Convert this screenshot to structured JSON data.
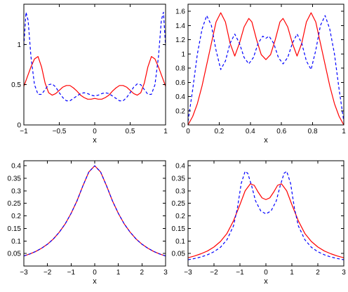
{
  "colors": {
    "solid": "#ff0000",
    "dashed": "#0000ff"
  },
  "chart_data": [
    {
      "type": "line",
      "xlabel": "x",
      "ylabel": "",
      "xlim": [
        -1,
        1
      ],
      "ylim": [
        0,
        1.5
      ],
      "xticks": [
        -1,
        -0.5,
        0,
        0.5,
        1
      ],
      "xtick_labels": [
        "−1",
        "−0.5",
        "0",
        "0.5",
        "1"
      ],
      "yticks": [
        0,
        0.5,
        1
      ],
      "ytick_labels": [
        "0",
        "0.5",
        "1"
      ],
      "series": [
        {
          "style": "solid",
          "color": "#ff0000",
          "x": [
            -1,
            -0.95,
            -0.9,
            -0.85,
            -0.8,
            -0.75,
            -0.7,
            -0.65,
            -0.6,
            -0.55,
            -0.5,
            -0.45,
            -0.4,
            -0.35,
            -0.3,
            -0.25,
            -0.2,
            -0.15,
            -0.1,
            -0.05,
            0,
            0.05,
            0.1,
            0.15,
            0.2,
            0.25,
            0.3,
            0.35,
            0.4,
            0.45,
            0.5,
            0.55,
            0.6,
            0.65,
            0.7,
            0.75,
            0.8,
            0.85,
            0.9,
            0.95,
            1
          ],
          "y": [
            0.48,
            0.6,
            0.72,
            0.82,
            0.85,
            0.72,
            0.52,
            0.4,
            0.37,
            0.39,
            0.43,
            0.47,
            0.49,
            0.49,
            0.46,
            0.42,
            0.37,
            0.34,
            0.32,
            0.32,
            0.33,
            0.32,
            0.32,
            0.34,
            0.37,
            0.42,
            0.46,
            0.49,
            0.49,
            0.47,
            0.43,
            0.39,
            0.37,
            0.4,
            0.52,
            0.72,
            0.85,
            0.82,
            0.72,
            0.6,
            0.48
          ]
        },
        {
          "style": "dashed",
          "color": "#0000ff",
          "x": [
            -1,
            -0.97,
            -0.94,
            -0.9,
            -0.85,
            -0.8,
            -0.75,
            -0.7,
            -0.65,
            -0.6,
            -0.55,
            -0.5,
            -0.45,
            -0.4,
            -0.35,
            -0.3,
            -0.25,
            -0.2,
            -0.15,
            -0.1,
            -0.05,
            0,
            0.05,
            0.1,
            0.15,
            0.2,
            0.25,
            0.3,
            0.35,
            0.4,
            0.45,
            0.5,
            0.55,
            0.6,
            0.65,
            0.7,
            0.75,
            0.8,
            0.85,
            0.9,
            0.94,
            0.97,
            1
          ],
          "y": [
            0.98,
            1.4,
            1.3,
            0.85,
            0.5,
            0.38,
            0.38,
            0.44,
            0.5,
            0.51,
            0.47,
            0.4,
            0.34,
            0.3,
            0.3,
            0.33,
            0.36,
            0.39,
            0.4,
            0.39,
            0.37,
            0.36,
            0.37,
            0.39,
            0.4,
            0.39,
            0.36,
            0.33,
            0.3,
            0.3,
            0.34,
            0.4,
            0.47,
            0.51,
            0.5,
            0.44,
            0.38,
            0.38,
            0.5,
            0.85,
            1.3,
            1.4,
            0.98
          ]
        }
      ]
    },
    {
      "type": "line",
      "xlabel": "x",
      "ylabel": "",
      "xlim": [
        0,
        1
      ],
      "ylim": [
        0,
        1.7
      ],
      "xticks": [
        0,
        0.2,
        0.4,
        0.6,
        0.8,
        1
      ],
      "xtick_labels": [
        "0",
        "0.2",
        "0.4",
        "0.6",
        "0.8",
        "1"
      ],
      "yticks": [
        0,
        0.2,
        0.4,
        0.6,
        0.8,
        1,
        1.2,
        1.4,
        1.6
      ],
      "ytick_labels": [
        "0",
        "0.2",
        "0.4",
        "0.6",
        "0.8",
        "1",
        "1.2",
        "1.4",
        "1.6"
      ],
      "series": [
        {
          "style": "solid",
          "color": "#ff0000",
          "x": [
            0,
            0.03,
            0.06,
            0.09,
            0.12,
            0.15,
            0.18,
            0.21,
            0.24,
            0.27,
            0.3,
            0.33,
            0.36,
            0.39,
            0.41,
            0.44,
            0.47,
            0.5,
            0.53,
            0.56,
            0.59,
            0.61,
            0.64,
            0.67,
            0.7,
            0.73,
            0.76,
            0.79,
            0.82,
            0.85,
            0.88,
            0.91,
            0.94,
            0.97,
            1
          ],
          "y": [
            0,
            0.12,
            0.3,
            0.55,
            0.85,
            1.15,
            1.45,
            1.58,
            1.45,
            1.15,
            0.97,
            1.15,
            1.38,
            1.5,
            1.45,
            1.2,
            0.99,
            0.92,
            0.99,
            1.2,
            1.45,
            1.5,
            1.38,
            1.15,
            0.97,
            1.15,
            1.45,
            1.58,
            1.45,
            1.15,
            0.85,
            0.55,
            0.3,
            0.12,
            0
          ]
        },
        {
          "style": "dashed",
          "color": "#0000ff",
          "x": [
            0,
            0.03,
            0.06,
            0.09,
            0.12,
            0.15,
            0.18,
            0.21,
            0.24,
            0.27,
            0.3,
            0.33,
            0.36,
            0.39,
            0.42,
            0.45,
            0.48,
            0.5,
            0.52,
            0.55,
            0.58,
            0.61,
            0.64,
            0.67,
            0.7,
            0.73,
            0.76,
            0.79,
            0.82,
            0.85,
            0.88,
            0.91,
            0.94,
            0.97,
            1
          ],
          "y": [
            0.05,
            0.5,
            1.0,
            1.35,
            1.54,
            1.4,
            1.05,
            0.78,
            0.9,
            1.15,
            1.28,
            1.15,
            0.95,
            0.86,
            0.95,
            1.15,
            1.25,
            1.22,
            1.25,
            1.15,
            0.95,
            0.86,
            0.95,
            1.15,
            1.28,
            1.15,
            0.9,
            0.78,
            1.05,
            1.4,
            1.54,
            1.35,
            1.0,
            0.5,
            0.05
          ]
        }
      ]
    },
    {
      "type": "line",
      "xlabel": "x",
      "ylabel": "",
      "xlim": [
        -3,
        3
      ],
      "ylim": [
        0,
        0.42
      ],
      "xticks": [
        -3,
        -2,
        -1,
        0,
        1,
        2,
        3
      ],
      "xtick_labels": [
        "−3",
        "−2",
        "−1",
        "0",
        "1",
        "2",
        "3"
      ],
      "yticks": [
        0.05,
        0.1,
        0.15,
        0.2,
        0.25,
        0.3,
        0.35,
        0.4
      ],
      "ytick_labels": [
        "0.05",
        "0.1",
        "0.15",
        "0.2",
        "0.25",
        "0.3",
        "0.35",
        "0.4"
      ],
      "series": [
        {
          "style": "solid",
          "color": "#ff0000",
          "x": [
            -3,
            -2.75,
            -2.5,
            -2.25,
            -2,
            -1.75,
            -1.5,
            -1.25,
            -1,
            -0.75,
            -0.5,
            -0.25,
            0,
            0.25,
            0.5,
            0.75,
            1,
            1.25,
            1.5,
            1.75,
            2,
            2.25,
            2.5,
            2.75,
            3
          ],
          "y": [
            0.04,
            0.048,
            0.058,
            0.071,
            0.087,
            0.108,
            0.135,
            0.168,
            0.21,
            0.26,
            0.32,
            0.375,
            0.4,
            0.375,
            0.32,
            0.26,
            0.21,
            0.168,
            0.135,
            0.108,
            0.087,
            0.071,
            0.058,
            0.048,
            0.04
          ]
        },
        {
          "style": "dashed",
          "color": "#0000ff",
          "x": [
            -3,
            -2.75,
            -2.5,
            -2.25,
            -2,
            -1.75,
            -1.5,
            -1.25,
            -1,
            -0.75,
            -0.5,
            -0.25,
            0,
            0.25,
            0.5,
            0.75,
            1,
            1.25,
            1.5,
            1.75,
            2,
            2.25,
            2.5,
            2.75,
            3
          ],
          "y": [
            0.04,
            0.048,
            0.058,
            0.071,
            0.087,
            0.108,
            0.135,
            0.168,
            0.21,
            0.26,
            0.32,
            0.375,
            0.4,
            0.375,
            0.32,
            0.26,
            0.21,
            0.168,
            0.135,
            0.108,
            0.087,
            0.071,
            0.058,
            0.048,
            0.04
          ]
        }
      ]
    },
    {
      "type": "line",
      "xlabel": "x",
      "ylabel": "",
      "xlim": [
        -3,
        3
      ],
      "ylim": [
        0,
        0.42
      ],
      "xticks": [
        -3,
        -2,
        -1,
        0,
        1,
        2,
        3
      ],
      "xtick_labels": [
        "−3",
        "−2",
        "−1",
        "0",
        "1",
        "2",
        "3"
      ],
      "yticks": [
        0.05,
        0.1,
        0.15,
        0.2,
        0.25,
        0.3,
        0.35,
        0.4
      ],
      "ytick_labels": [
        "0.05",
        "0.1",
        "0.15",
        "0.2",
        "0.25",
        "0.3",
        "0.35",
        "0.4"
      ],
      "series": [
        {
          "style": "solid",
          "color": "#ff0000",
          "x": [
            -3,
            -2.75,
            -2.5,
            -2.25,
            -2,
            -1.75,
            -1.5,
            -1.25,
            -1,
            -0.8,
            -0.6,
            -0.45,
            -0.3,
            -0.15,
            0,
            0.15,
            0.3,
            0.45,
            0.6,
            0.8,
            1,
            1.25,
            1.5,
            1.75,
            2,
            2.25,
            2.5,
            2.75,
            3
          ],
          "y": [
            0.033,
            0.04,
            0.049,
            0.06,
            0.076,
            0.098,
            0.13,
            0.18,
            0.245,
            0.3,
            0.328,
            0.322,
            0.295,
            0.272,
            0.265,
            0.272,
            0.295,
            0.322,
            0.328,
            0.3,
            0.245,
            0.18,
            0.13,
            0.098,
            0.076,
            0.06,
            0.049,
            0.04,
            0.033
          ]
        },
        {
          "style": "dashed",
          "color": "#0000ff",
          "x": [
            -3,
            -2.75,
            -2.5,
            -2.25,
            -2,
            -1.75,
            -1.5,
            -1.25,
            -1.1,
            -0.95,
            -0.8,
            -0.7,
            -0.55,
            -0.4,
            -0.2,
            0,
            0.2,
            0.4,
            0.55,
            0.7,
            0.8,
            0.95,
            1.1,
            1.25,
            1.5,
            1.75,
            2,
            2.25,
            2.5,
            2.75,
            3
          ],
          "y": [
            0.025,
            0.03,
            0.036,
            0.045,
            0.057,
            0.075,
            0.105,
            0.16,
            0.23,
            0.33,
            0.378,
            0.37,
            0.32,
            0.26,
            0.22,
            0.208,
            0.22,
            0.26,
            0.32,
            0.37,
            0.378,
            0.33,
            0.23,
            0.16,
            0.105,
            0.075,
            0.057,
            0.045,
            0.036,
            0.03,
            0.025
          ]
        }
      ]
    }
  ]
}
